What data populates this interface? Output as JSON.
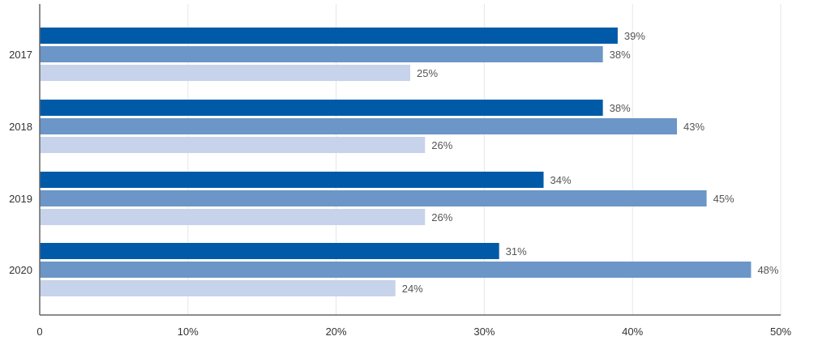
{
  "chart_data": {
    "type": "bar",
    "orientation": "horizontal",
    "categories": [
      "2017",
      "2018",
      "2019",
      "2020"
    ],
    "series": [
      {
        "values": [
          39,
          38,
          34,
          31
        ],
        "color": "#005aa8"
      },
      {
        "values": [
          38,
          43,
          45,
          48
        ],
        "color": "#6b96c7"
      },
      {
        "values": [
          25,
          26,
          26,
          24
        ],
        "color": "#c7d3ea"
      }
    ],
    "value_suffix": "%",
    "xlim": [
      0,
      50
    ],
    "x_ticks": [
      0,
      10,
      20,
      30,
      40,
      50
    ],
    "x_tick_labels": [
      "0",
      "10%",
      "20%",
      "30%",
      "40%",
      "50%"
    ],
    "grid": "vertical",
    "grid_color": "#e6e6e6",
    "axis_color": "#666666",
    "legend": "none",
    "title": "",
    "xlabel": "",
    "ylabel": ""
  }
}
